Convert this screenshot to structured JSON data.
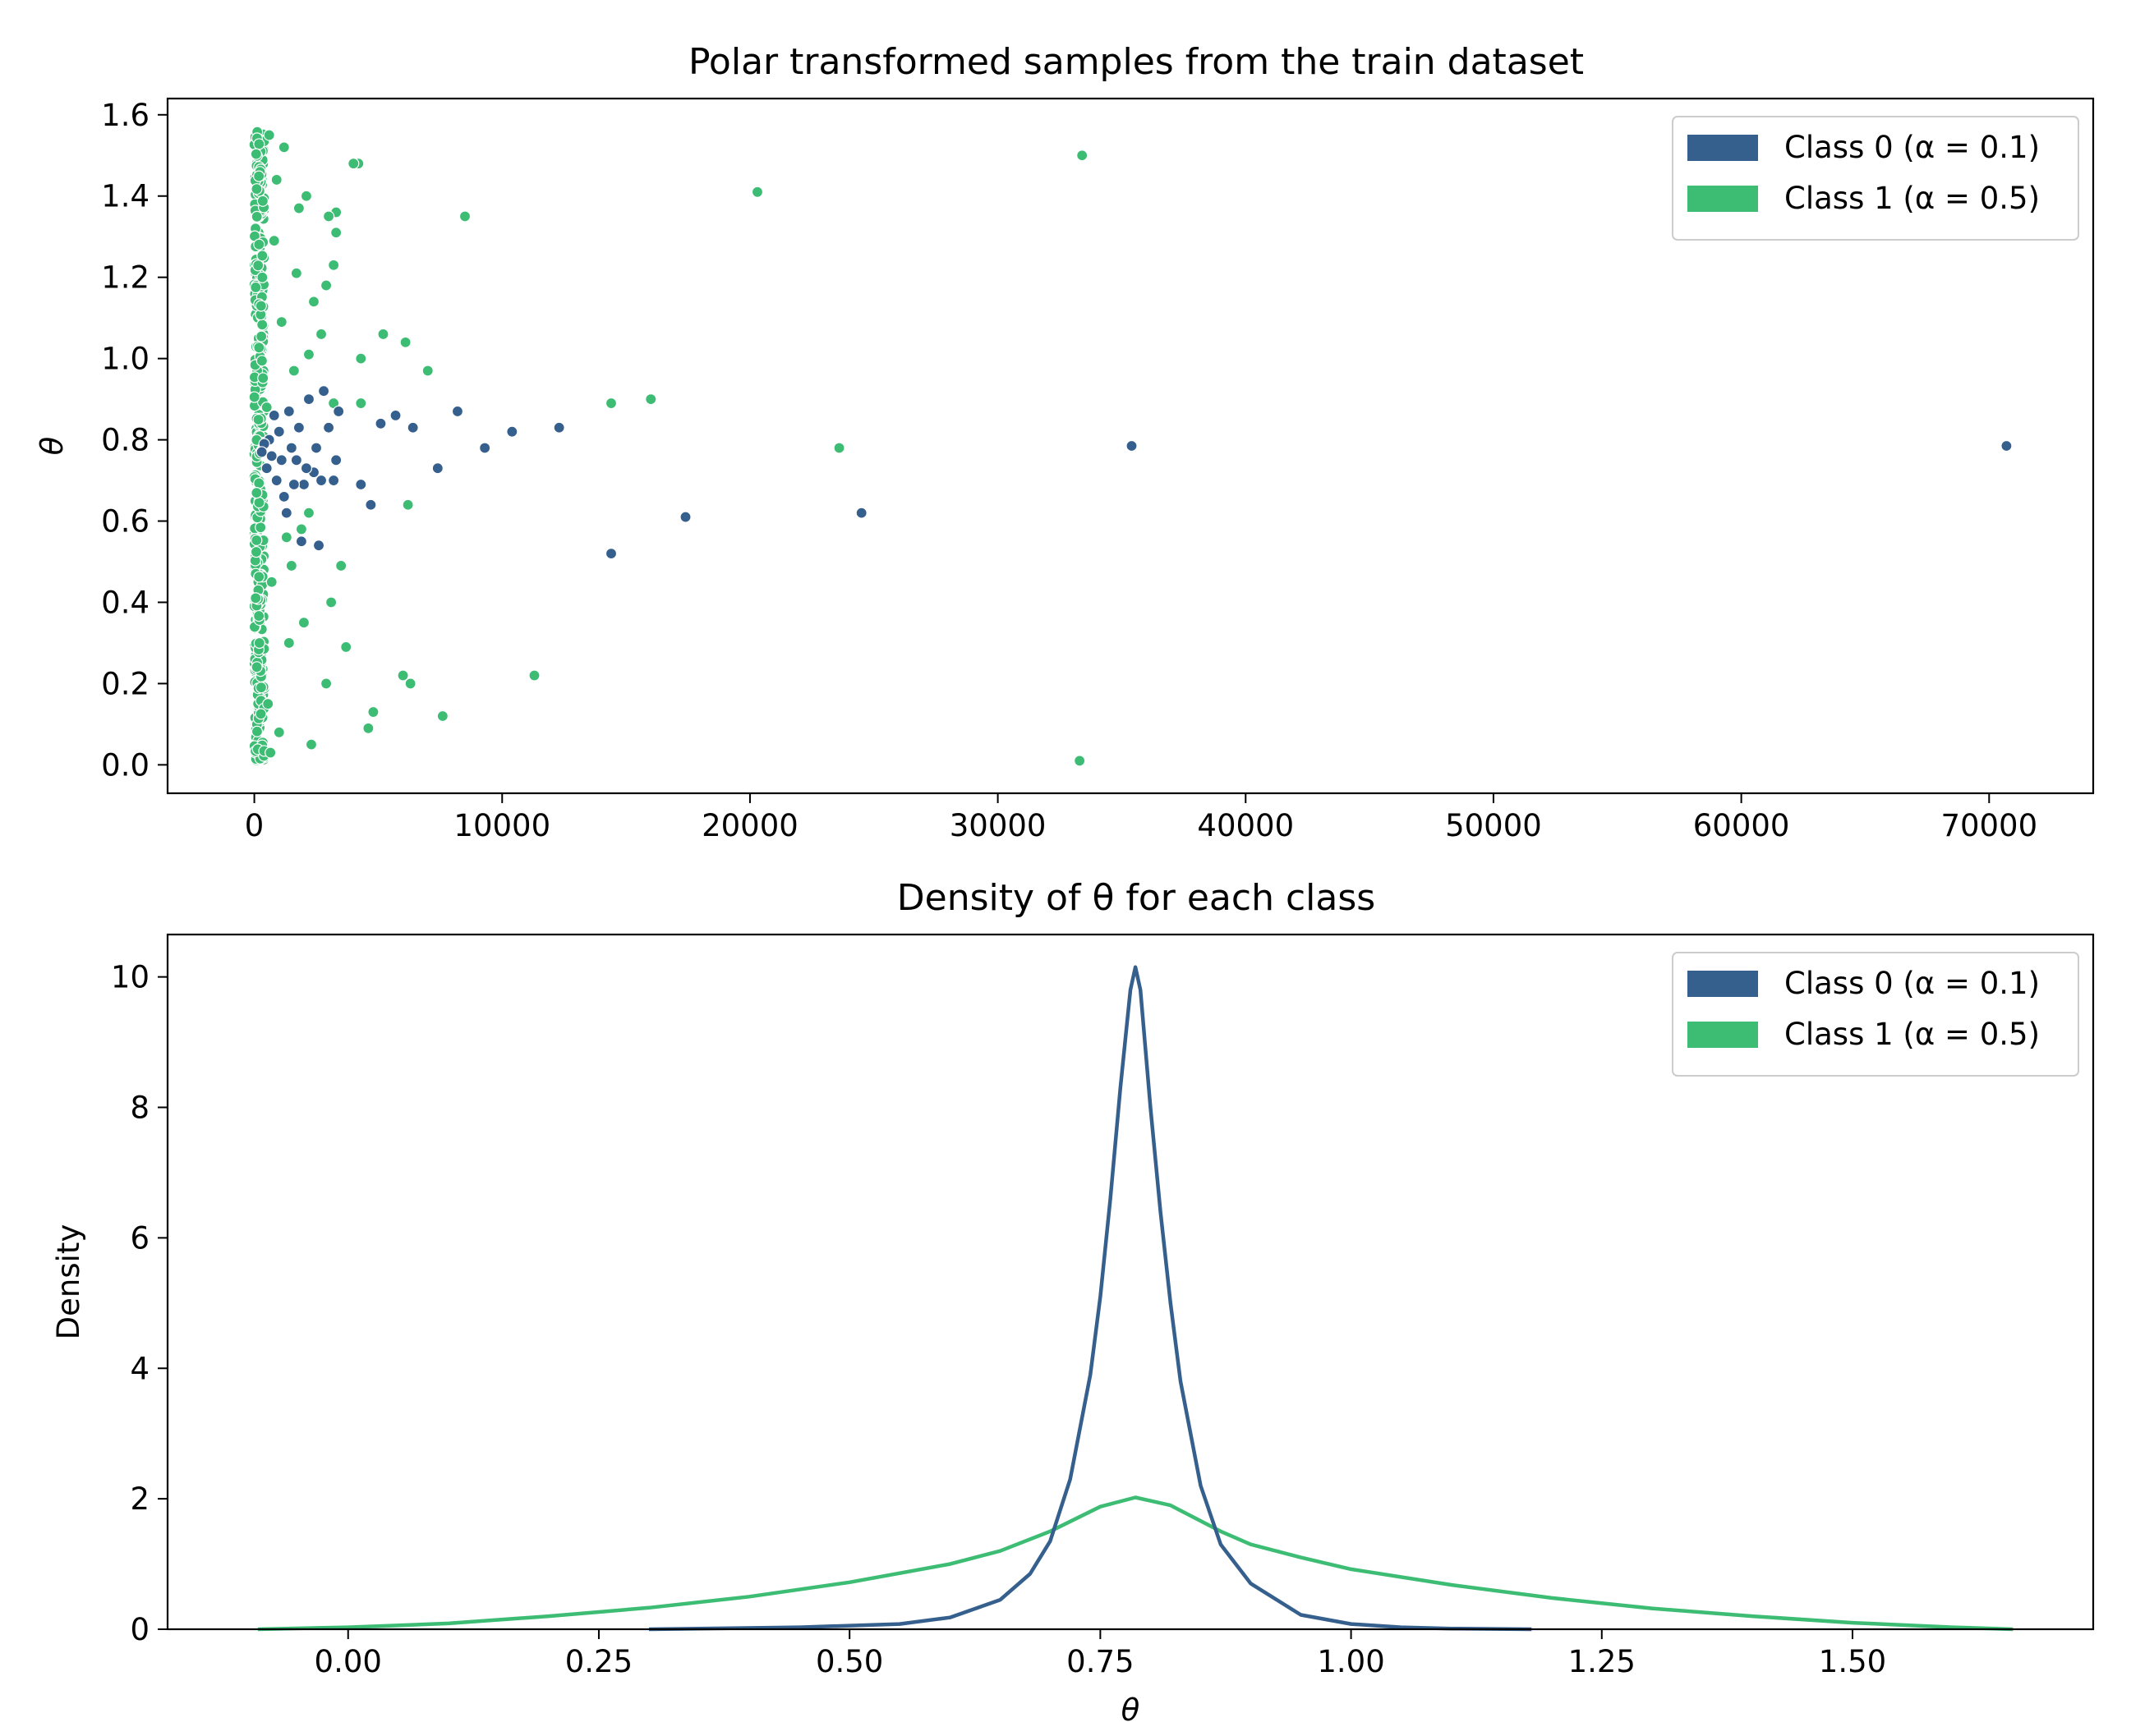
{
  "chart_data": [
    {
      "type": "scatter",
      "title": "Polar transformed samples from the train dataset",
      "xlabel": "",
      "ylabel": "θ",
      "xlim": [
        -3500,
        74200
      ],
      "ylim": [
        -0.07,
        1.64
      ],
      "xticks": [
        0,
        10000,
        20000,
        30000,
        40000,
        50000,
        60000,
        70000
      ],
      "yticks": [
        0.0,
        0.2,
        0.4,
        0.6,
        0.8,
        1.0,
        1.2,
        1.4,
        1.6
      ],
      "xtick_labels": [
        "0",
        "10000",
        "20000",
        "30000",
        "40000",
        "50000",
        "60000",
        "70000"
      ],
      "ytick_labels": [
        "0.0",
        "0.2",
        "0.4",
        "0.6",
        "0.8",
        "1.0",
        "1.2",
        "1.4",
        "1.6"
      ],
      "legend_position": "top-right",
      "legend": [
        "Class 0 (α = 0.1)",
        "Class 1 (α = 0.5)"
      ],
      "series": [
        {
          "name": "Class 0 (α = 0.1)",
          "color": "#355f8d",
          "points": [
            [
              70700,
              0.785
            ],
            [
              35400,
              0.785
            ],
            [
              24500,
              0.62
            ],
            [
              17400,
              0.61
            ],
            [
              14400,
              0.52
            ],
            [
              12300,
              0.83
            ],
            [
              10400,
              0.82
            ],
            [
              9300,
              0.78
            ],
            [
              8200,
              0.87
            ],
            [
              7400,
              0.73
            ],
            [
              6400,
              0.83
            ],
            [
              5700,
              0.86
            ],
            [
              5100,
              0.84
            ],
            [
              4700,
              0.64
            ],
            [
              4300,
              0.69
            ],
            [
              3400,
              0.87
            ],
            [
              3300,
              0.75
            ],
            [
              3200,
              0.7
            ],
            [
              3000,
              0.83
            ],
            [
              2800,
              0.92
            ],
            [
              2700,
              0.7
            ],
            [
              2600,
              0.54
            ],
            [
              2500,
              0.78
            ],
            [
              2400,
              0.72
            ],
            [
              2200,
              0.9
            ],
            [
              2100,
              0.73
            ],
            [
              2000,
              0.69
            ],
            [
              1900,
              0.55
            ],
            [
              1800,
              0.83
            ],
            [
              1700,
              0.75
            ],
            [
              1600,
              0.69
            ],
            [
              1500,
              0.78
            ],
            [
              1400,
              0.87
            ],
            [
              1300,
              0.62
            ],
            [
              1200,
              0.66
            ],
            [
              1100,
              0.75
            ],
            [
              1000,
              0.82
            ],
            [
              900,
              0.7
            ],
            [
              800,
              0.86
            ],
            [
              700,
              0.76
            ],
            [
              600,
              0.8
            ],
            [
              500,
              0.73
            ],
            [
              400,
              0.79
            ],
            [
              300,
              0.77
            ]
          ]
        },
        {
          "name": "Class 1 (α = 0.5)",
          "color": "#3dbc74",
          "points": [
            [
              33400,
              1.5
            ],
            [
              33300,
              0.01
            ],
            [
              23600,
              0.78
            ],
            [
              20300,
              1.41
            ],
            [
              16000,
              0.9
            ],
            [
              14400,
              0.89
            ],
            [
              11300,
              0.22
            ],
            [
              8500,
              1.35
            ],
            [
              7600,
              0.12
            ],
            [
              7000,
              0.97
            ],
            [
              6300,
              0.2
            ],
            [
              6100,
              1.04
            ],
            [
              6000,
              0.22
            ],
            [
              6200,
              0.64
            ],
            [
              5200,
              1.06
            ],
            [
              4800,
              0.13
            ],
            [
              4600,
              0.09
            ],
            [
              4300,
              1.0
            ],
            [
              4300,
              0.89
            ],
            [
              4200,
              1.48
            ],
            [
              4000,
              1.48
            ],
            [
              3700,
              0.29
            ],
            [
              3500,
              0.49
            ],
            [
              3300,
              1.36
            ],
            [
              3300,
              1.31
            ],
            [
              3200,
              1.23
            ],
            [
              3200,
              0.89
            ],
            [
              3100,
              0.4
            ],
            [
              3000,
              1.35
            ],
            [
              2900,
              1.18
            ],
            [
              2900,
              0.2
            ],
            [
              2700,
              1.06
            ],
            [
              2400,
              1.14
            ],
            [
              2300,
              0.05
            ],
            [
              2200,
              0.62
            ],
            [
              2200,
              1.01
            ],
            [
              2100,
              1.4
            ],
            [
              2000,
              0.35
            ],
            [
              1900,
              0.58
            ],
            [
              1800,
              1.37
            ],
            [
              1700,
              1.21
            ],
            [
              1600,
              0.97
            ],
            [
              1500,
              0.49
            ],
            [
              1400,
              0.3
            ],
            [
              1300,
              0.56
            ],
            [
              1200,
              1.52
            ],
            [
              1100,
              1.09
            ],
            [
              1000,
              0.08
            ],
            [
              900,
              1.44
            ],
            [
              800,
              1.29
            ],
            [
              700,
              0.45
            ],
            [
              650,
              0.03
            ],
            [
              600,
              1.55
            ],
            [
              550,
              0.15
            ],
            [
              500,
              0.88
            ]
          ]
        }
      ],
      "dense_band": {
        "x_range": [
          0,
          400
        ],
        "y_range": [
          0.01,
          1.56
        ],
        "series": "Class 1 (α = 0.5)"
      }
    },
    {
      "type": "line",
      "title": "Density of θ for each class",
      "xlabel": "θ",
      "ylabel": "Density",
      "xlim": [
        -0.18,
        1.74
      ],
      "ylim": [
        0,
        10.65
      ],
      "xticks": [
        0.0,
        0.25,
        0.5,
        0.75,
        1.0,
        1.25,
        1.5
      ],
      "yticks": [
        0,
        2,
        4,
        6,
        8,
        10
      ],
      "xtick_labels": [
        "0.00",
        "0.25",
        "0.50",
        "0.75",
        "1.00",
        "1.25",
        "1.50"
      ],
      "ytick_labels": [
        "0",
        "2",
        "4",
        "6",
        "8",
        "10"
      ],
      "legend_position": "top-right",
      "legend": [
        "Class 0 (α = 0.1)",
        "Class 1 (α = 0.5)"
      ],
      "series": [
        {
          "name": "Class 0 (α = 0.1)",
          "color": "#355f8d",
          "x": [
            0.3,
            0.45,
            0.55,
            0.6,
            0.65,
            0.68,
            0.7,
            0.72,
            0.74,
            0.75,
            0.76,
            0.77,
            0.78,
            0.785,
            0.79,
            0.8,
            0.81,
            0.82,
            0.83,
            0.85,
            0.87,
            0.9,
            0.95,
            1.0,
            1.05,
            1.1,
            1.18
          ],
          "values": [
            0.0,
            0.03,
            0.08,
            0.18,
            0.45,
            0.85,
            1.35,
            2.3,
            3.9,
            5.1,
            6.6,
            8.3,
            9.8,
            10.15,
            9.8,
            8.0,
            6.4,
            5.0,
            3.8,
            2.2,
            1.3,
            0.7,
            0.22,
            0.08,
            0.03,
            0.01,
            0.0
          ]
        },
        {
          "name": "Class 1 (α = 0.5)",
          "color": "#3dbc74",
          "x": [
            -0.09,
            0.0,
            0.1,
            0.2,
            0.3,
            0.4,
            0.5,
            0.6,
            0.65,
            0.7,
            0.75,
            0.785,
            0.82,
            0.87,
            0.9,
            0.95,
            1.0,
            1.1,
            1.2,
            1.3,
            1.4,
            1.5,
            1.6,
            1.66
          ],
          "values": [
            0.0,
            0.03,
            0.09,
            0.2,
            0.33,
            0.5,
            0.72,
            1.0,
            1.2,
            1.5,
            1.88,
            2.02,
            1.9,
            1.5,
            1.3,
            1.1,
            0.92,
            0.68,
            0.48,
            0.32,
            0.2,
            0.1,
            0.03,
            0.0
          ]
        }
      ]
    }
  ]
}
